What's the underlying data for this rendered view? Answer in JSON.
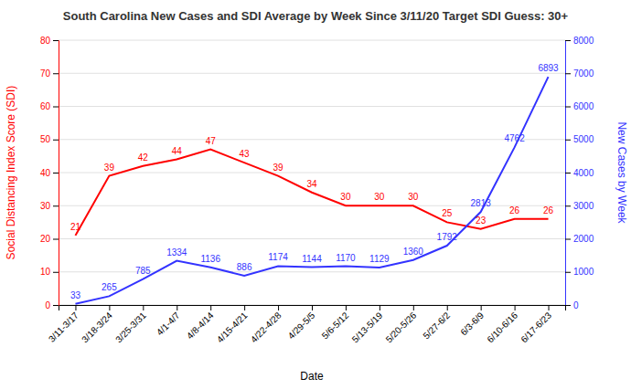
{
  "chart_data": {
    "type": "line",
    "title": "South Carolina New Cases and SDI Average by Week Since 3/11/20 Target SDI Guess: 30+",
    "xlabel": "Date",
    "ylabel": "Social Distancing Index Score (SDI)",
    "y2label": "New Cases by Week",
    "categories": [
      "3/11-3/17",
      "3/18-3/24",
      "3/25-3/31",
      "4/1-4/7",
      "4/8-4/14",
      "4/15-4/21",
      "4/22-4/28",
      "4/29-5/5",
      "5/6-5/12",
      "5/13-5/19",
      "5/20-5/26",
      "5/27-6/2",
      "6/3-6/9",
      "6/10-6/16",
      "6/17-6/23"
    ],
    "series": [
      {
        "color": "#ff0000",
        "values": [
          21,
          39,
          42,
          44,
          47,
          43,
          39,
          34,
          30,
          30,
          30,
          25,
          23,
          26,
          26
        ]
      },
      {
        "color": "#3333ff",
        "axis": "y2",
        "values": [
          33,
          265,
          785,
          1334,
          1136,
          886,
          1174,
          1144,
          1170,
          1129,
          1360,
          1792,
          2813,
          4762,
          6893
        ]
      }
    ],
    "ylim": [
      0,
      80
    ],
    "yticks": [
      0,
      10,
      20,
      30,
      40,
      50,
      60,
      70,
      80
    ],
    "y2lim": [
      0,
      8000
    ],
    "y2ticks": [
      0,
      1000,
      2000,
      3000,
      4000,
      5000,
      6000,
      7000,
      8000
    ],
    "grid": true,
    "data_labels": true
  }
}
